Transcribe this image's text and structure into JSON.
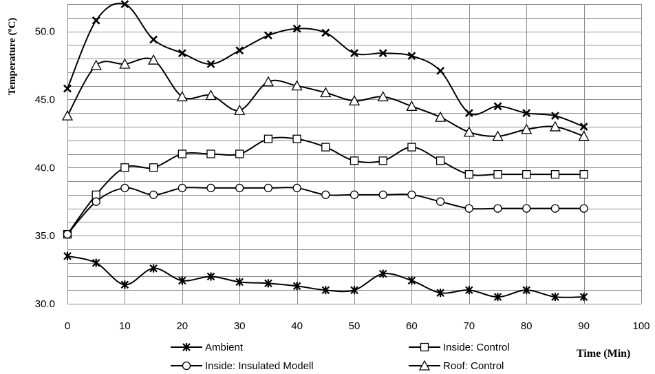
{
  "chart_data": {
    "type": "line",
    "title": "",
    "xlabel": "Time (Min)",
    "ylabel": "Temperature (ºC)",
    "xlim": [
      0,
      100
    ],
    "ylim": [
      30,
      52
    ],
    "x_ticks": [
      "0",
      "10",
      "20",
      "30",
      "40",
      "50",
      "60",
      "70",
      "80",
      "90",
      "100"
    ],
    "y_ticks": [
      "30.0",
      "35.0",
      "40.0",
      "45.0",
      "50.0"
    ],
    "grid": true,
    "legend_position": "bottom",
    "x": [
      0,
      5,
      10,
      15,
      20,
      25,
      30,
      35,
      40,
      45,
      50,
      55,
      60,
      65,
      70,
      75,
      80,
      85,
      90
    ],
    "series": [
      {
        "name": "Ambient",
        "marker": "star",
        "values": [
          33.5,
          33.0,
          31.4,
          32.6,
          31.7,
          32.0,
          31.6,
          31.5,
          31.3,
          31.0,
          31.0,
          32.2,
          31.7,
          30.8,
          31.0,
          30.5,
          31.0,
          30.5,
          30.5
        ]
      },
      {
        "name": "Inside: Control",
        "marker": "square",
        "values": [
          35.1,
          38.0,
          40.0,
          40.0,
          41.0,
          41.0,
          41.0,
          42.1,
          42.1,
          41.5,
          40.5,
          40.5,
          41.5,
          40.5,
          39.5,
          39.5,
          39.5,
          39.5,
          39.5
        ]
      },
      {
        "name": "Inside: Insulated Modell",
        "marker": "circle",
        "values": [
          35.1,
          37.5,
          38.5,
          38.0,
          38.5,
          38.5,
          38.5,
          38.5,
          38.5,
          38.0,
          38.0,
          38.0,
          38.0,
          37.5,
          37.0,
          37.0,
          37.0,
          37.0,
          37.0
        ]
      },
      {
        "name": "Roof: Control",
        "marker": "triangle",
        "values": [
          43.8,
          47.5,
          47.6,
          47.9,
          45.2,
          45.3,
          44.2,
          46.3,
          46.0,
          45.5,
          44.9,
          45.2,
          44.5,
          43.7,
          42.6,
          42.3,
          42.8,
          43.0,
          42.3
        ]
      },
      {
        "name": "",
        "marker": "x",
        "values": [
          45.8,
          50.8,
          52.0,
          49.4,
          48.4,
          47.6,
          48.6,
          49.7,
          50.2,
          49.9,
          48.4,
          48.4,
          48.2,
          47.1,
          44.0,
          44.5,
          44.0,
          43.8,
          43.0
        ]
      }
    ]
  }
}
